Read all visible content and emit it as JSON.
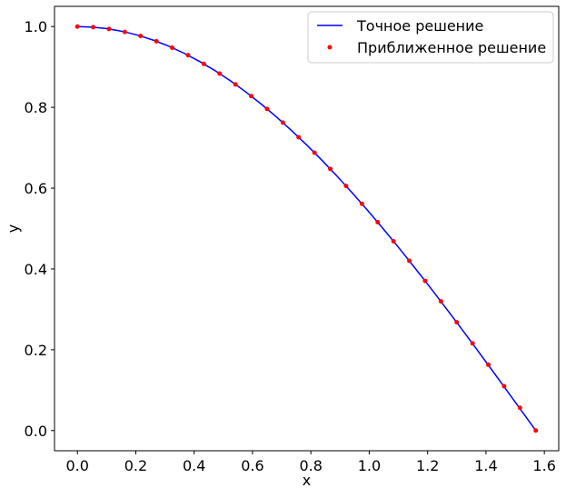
{
  "chart_data": {
    "type": "line",
    "title": "",
    "xlabel": "x",
    "ylabel": "y",
    "xlim": [
      -0.0785,
      1.6493
    ],
    "ylim": [
      -0.05,
      1.05
    ],
    "xticks": [
      0.0,
      0.2,
      0.4,
      0.6,
      0.8,
      1.0,
      1.2,
      1.4,
      1.6
    ],
    "xtick_labels": [
      "0.0",
      "0.2",
      "0.4",
      "0.6",
      "0.8",
      "1.0",
      "1.2",
      "1.4",
      "1.6"
    ],
    "yticks": [
      0.0,
      0.2,
      0.4,
      0.6,
      0.8,
      1.0
    ],
    "ytick_labels": [
      "0.0",
      "0.2",
      "0.4",
      "0.6",
      "0.8",
      "1.0"
    ],
    "grid": false,
    "legend_position": "top-right",
    "series": [
      {
        "name": "Точное решение",
        "kind": "line",
        "color": "#0000ff",
        "x": [
          0.0,
          0.0524,
          0.1047,
          0.1571,
          0.2094,
          0.2618,
          0.3142,
          0.3665,
          0.4189,
          0.4712,
          0.5236,
          0.576,
          0.6283,
          0.6807,
          0.733,
          0.7854,
          0.8378,
          0.8901,
          0.9425,
          0.9948,
          1.0472,
          1.0996,
          1.1519,
          1.2043,
          1.2566,
          1.309,
          1.3614,
          1.4137,
          1.4661,
          1.5184,
          1.5708
        ],
        "y": [
          1.0,
          0.9986,
          0.9945,
          0.9877,
          0.9781,
          0.9659,
          0.9511,
          0.9336,
          0.9135,
          0.891,
          0.866,
          0.8387,
          0.809,
          0.7771,
          0.7431,
          0.7071,
          0.6691,
          0.6293,
          0.5878,
          0.5446,
          0.5,
          0.454,
          0.4067,
          0.3584,
          0.309,
          0.2588,
          0.2079,
          0.1564,
          0.1045,
          0.0523,
          0.0
        ]
      },
      {
        "name": "Приближенное решение",
        "kind": "scatter",
        "color": "#ff0000",
        "x": [
          0.0,
          0.0541,
          0.1083,
          0.1625,
          0.2166,
          0.2708,
          0.3249,
          0.3791,
          0.4333,
          0.4874,
          0.5416,
          0.5957,
          0.6499,
          0.7041,
          0.7582,
          0.8124,
          0.8665,
          0.9207,
          0.9749,
          1.029,
          1.0832,
          1.1373,
          1.1915,
          1.2457,
          1.2998,
          1.354,
          1.4081,
          1.4623,
          1.5165,
          1.5708
        ],
        "y": [
          1.0,
          0.9985,
          0.9941,
          0.9868,
          0.9766,
          0.9636,
          0.9477,
          0.929,
          0.9076,
          0.8835,
          0.8569,
          0.8278,
          0.7962,
          0.7623,
          0.7261,
          0.6879,
          0.6476,
          0.6054,
          0.5614,
          0.5158,
          0.4686,
          0.4201,
          0.3705,
          0.3197,
          0.2681,
          0.2158,
          0.163,
          0.1097,
          0.0562,
          0.0
        ]
      }
    ]
  }
}
